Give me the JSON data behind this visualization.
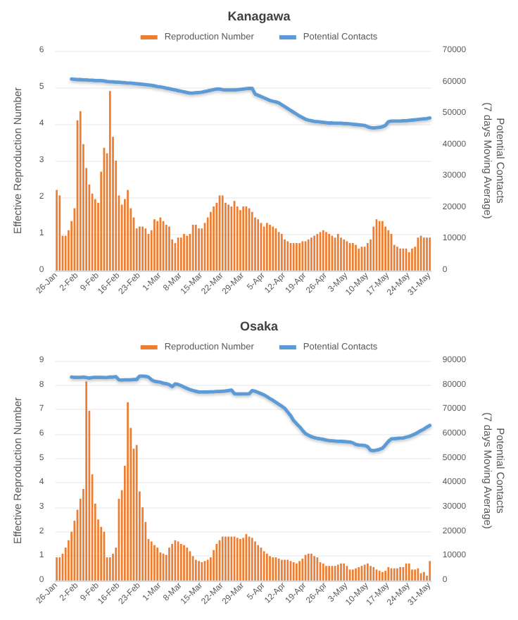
{
  "chart_data": [
    {
      "type": "bar",
      "title": "Kanagawa",
      "ylabel": "Effective Reproduction Number",
      "y2label": "Potential Contacts\n(7 days Moving Average)",
      "categories": [
        "26-Jan",
        null,
        null,
        null,
        null,
        null,
        null,
        "2-Feb",
        null,
        null,
        null,
        null,
        null,
        null,
        "9-Feb",
        null,
        null,
        null,
        null,
        null,
        null,
        "16-Feb",
        null,
        null,
        null,
        null,
        null,
        null,
        "23-Feb",
        null,
        null,
        null,
        null,
        null,
        null,
        "1-Mar",
        null,
        null,
        null,
        null,
        null,
        null,
        "8-Mar",
        null,
        null,
        null,
        null,
        null,
        null,
        "15-Mar",
        null,
        null,
        null,
        null,
        null,
        null,
        "22-Mar",
        null,
        null,
        null,
        null,
        null,
        null,
        "29-Mar",
        null,
        null,
        null,
        null,
        null,
        null,
        "5-Apr",
        null,
        null,
        null,
        null,
        null,
        null,
        "12-Apr",
        null,
        null,
        null,
        null,
        null,
        null,
        "19-Apr",
        null,
        null,
        null,
        null,
        null,
        null,
        "26-Apr",
        null,
        null,
        null,
        null,
        null,
        null,
        "3-May",
        null,
        null,
        null,
        null,
        null,
        null,
        "10-May",
        null,
        null,
        null,
        null,
        null,
        null,
        "17-May",
        null,
        null,
        null,
        null,
        null,
        null,
        "24-May",
        null,
        null,
        null,
        null,
        null,
        null,
        "31-May"
      ],
      "series": [
        {
          "name": "Reproduction Number",
          "color": "#ed7d31",
          "values": [
            2.2,
            2.05,
            0.95,
            0.95,
            1.1,
            1.35,
            1.7,
            4.1,
            4.35,
            3.45,
            2.8,
            2.35,
            2.1,
            1.95,
            1.85,
            2.7,
            3.35,
            3.2,
            4.9,
            3.65,
            3.0,
            2.05,
            1.8,
            1.95,
            2.2,
            1.7,
            1.45,
            1.15,
            1.2,
            1.2,
            1.15,
            1.0,
            1.1,
            1.4,
            1.35,
            1.45,
            1.35,
            1.25,
            1.2,
            0.85,
            0.75,
            0.9,
            0.9,
            1.0,
            0.95,
            1.0,
            1.25,
            1.25,
            1.15,
            1.15,
            1.3,
            1.45,
            1.6,
            1.75,
            1.85,
            2.05,
            2.05,
            1.85,
            1.8,
            1.75,
            1.9,
            1.75,
            1.65,
            1.75,
            1.75,
            1.7,
            1.6,
            1.45,
            1.4,
            1.3,
            1.2,
            1.3,
            1.25,
            1.2,
            1.15,
            1.05,
            1.0,
            0.85,
            0.8,
            0.75,
            0.75,
            0.75,
            0.75,
            0.8,
            0.8,
            0.85,
            0.9,
            0.95,
            1.0,
            1.05,
            1.1,
            1.05,
            1.0,
            0.95,
            0.9,
            1.0,
            0.9,
            0.85,
            0.8,
            0.75,
            0.75,
            0.7,
            0.6,
            0.65,
            0.65,
            0.75,
            0.85,
            1.2,
            1.4,
            1.35,
            1.35,
            1.2,
            1.1,
            1.0,
            0.7,
            0.65,
            0.6,
            0.6,
            0.6,
            0.5,
            0.6,
            0.65,
            0.9,
            0.95,
            0.9,
            0.9,
            0.9
          ]
        },
        {
          "name": "Potential Contacts",
          "type": "line",
          "axis": "y2",
          "color": "#5b9bd5",
          "values": [
            null,
            null,
            null,
            null,
            null,
            61000,
            60900,
            60800,
            60800,
            60700,
            60700,
            60600,
            60600,
            60500,
            60500,
            60500,
            60400,
            60200,
            60100,
            60100,
            60000,
            60000,
            59900,
            59800,
            59700,
            59700,
            59600,
            59500,
            59400,
            59300,
            59200,
            59100,
            59000,
            58800,
            58600,
            58500,
            58300,
            58100,
            57900,
            57700,
            57500,
            57300,
            57100,
            56900,
            56700,
            56500,
            56500,
            56600,
            56700,
            56800,
            57000,
            57200,
            57400,
            57600,
            57800,
            57800,
            57600,
            57500,
            57500,
            57500,
            57500,
            57600,
            57700,
            57800,
            57900,
            58000,
            58000,
            56200,
            55800,
            55400,
            55000,
            54600,
            54200,
            53900,
            53700,
            53400,
            52800,
            52200,
            51600,
            51000,
            50400,
            49800,
            49200,
            48700,
            48200,
            47900,
            47700,
            47500,
            47400,
            47300,
            47200,
            47100,
            47000,
            47000,
            46900,
            46900,
            46900,
            46800,
            46800,
            46700,
            46600,
            46500,
            46400,
            46300,
            46200,
            45800,
            45500,
            45400,
            45500,
            45600,
            45800,
            46200,
            47400,
            47600,
            47600,
            47600,
            47600,
            47700,
            47700,
            47800,
            47900,
            48000,
            48100,
            48200,
            48300,
            48400,
            48600
          ]
        }
      ],
      "ylim": [
        0,
        6
      ],
      "yticks": [
        0,
        1,
        2,
        3,
        4,
        5,
        6
      ],
      "y2lim": [
        0,
        70000
      ],
      "y2ticks": [
        0,
        10000,
        20000,
        30000,
        40000,
        50000,
        60000,
        70000
      ],
      "grid": "y",
      "legend": "top",
      "line_style": "solid"
    },
    {
      "type": "bar",
      "title": "Osaka",
      "ylabel": "Effective Reproduction Number",
      "y2label": "Potential Contacts\n(7 days Moving Average)",
      "categories": [
        "26-Jan",
        null,
        null,
        null,
        null,
        null,
        null,
        "2-Feb",
        null,
        null,
        null,
        null,
        null,
        null,
        "9-Feb",
        null,
        null,
        null,
        null,
        null,
        null,
        "16-Feb",
        null,
        null,
        null,
        null,
        null,
        null,
        "23-Feb",
        null,
        null,
        null,
        null,
        null,
        null,
        "1-Mar",
        null,
        null,
        null,
        null,
        null,
        null,
        "8-Mar",
        null,
        null,
        null,
        null,
        null,
        null,
        "15-Mar",
        null,
        null,
        null,
        null,
        null,
        null,
        "22-Mar",
        null,
        null,
        null,
        null,
        null,
        null,
        "29-Mar",
        null,
        null,
        null,
        null,
        null,
        null,
        "5-Apr",
        null,
        null,
        null,
        null,
        null,
        null,
        "12-Apr",
        null,
        null,
        null,
        null,
        null,
        null,
        "19-Apr",
        null,
        null,
        null,
        null,
        null,
        null,
        "26-Apr",
        null,
        null,
        null,
        null,
        null,
        null,
        "3-May",
        null,
        null,
        null,
        null,
        null,
        null,
        "10-May",
        null,
        null,
        null,
        null,
        null,
        null,
        "17-May",
        null,
        null,
        null,
        null,
        null,
        null,
        "24-May",
        null,
        null,
        null,
        null,
        null,
        null,
        "31-May"
      ],
      "series": [
        {
          "name": "Reproduction Number",
          "color": "#ed7d31",
          "values": [
            0.95,
            0.95,
            1.1,
            1.35,
            1.65,
            2.0,
            2.45,
            2.9,
            3.35,
            3.75,
            8.15,
            6.95,
            4.35,
            3.15,
            2.5,
            2.2,
            2.0,
            0.95,
            0.95,
            1.1,
            1.35,
            3.35,
            3.7,
            4.7,
            7.3,
            6.25,
            5.4,
            5.55,
            3.65,
            3.0,
            2.4,
            1.7,
            1.6,
            1.45,
            1.35,
            1.15,
            1.1,
            1.05,
            1.35,
            1.5,
            1.65,
            1.6,
            1.5,
            1.45,
            1.35,
            1.2,
            1.0,
            0.85,
            0.8,
            0.75,
            0.8,
            0.85,
            0.95,
            1.25,
            1.5,
            1.65,
            1.8,
            1.8,
            1.8,
            1.8,
            1.8,
            1.75,
            1.7,
            1.75,
            1.9,
            1.8,
            1.75,
            1.6,
            1.45,
            1.35,
            1.2,
            1.1,
            1.0,
            0.95,
            0.95,
            0.9,
            0.85,
            0.85,
            0.85,
            0.8,
            0.75,
            0.7,
            0.8,
            0.9,
            1.05,
            1.1,
            1.1,
            1.0,
            0.95,
            0.75,
            0.7,
            0.6,
            0.6,
            0.6,
            0.6,
            0.65,
            0.7,
            0.7,
            0.6,
            0.45,
            0.45,
            0.5,
            0.55,
            0.6,
            0.65,
            0.7,
            0.6,
            0.55,
            0.45,
            0.4,
            0.35,
            0.4,
            0.55,
            0.5,
            0.5,
            0.5,
            0.55,
            0.55,
            0.7,
            0.7,
            0.45,
            0.45,
            0.5,
            0.3,
            0.35,
            0.2,
            0.8
          ]
        },
        {
          "name": "Potential Contacts",
          "type": "line",
          "axis": "y2",
          "color": "#5b9bd5",
          "values": [
            null,
            null,
            null,
            null,
            null,
            83300,
            83200,
            83200,
            83200,
            83300,
            83100,
            82900,
            83100,
            83200,
            83200,
            83200,
            83100,
            83100,
            83300,
            83300,
            83500,
            82200,
            82100,
            82200,
            82200,
            82200,
            82300,
            82300,
            83700,
            83700,
            83600,
            83300,
            82200,
            81600,
            81400,
            81200,
            80800,
            80600,
            80200,
            79400,
            80500,
            80300,
            79800,
            79200,
            78700,
            78200,
            77800,
            77500,
            77200,
            77200,
            77200,
            77200,
            77300,
            77300,
            77400,
            77400,
            77500,
            77600,
            77800,
            78000,
            76500,
            76400,
            76400,
            76400,
            76400,
            76500,
            77800,
            77500,
            77000,
            76500,
            76000,
            75300,
            74500,
            73800,
            73000,
            72200,
            71400,
            70500,
            69000,
            67500,
            65500,
            64200,
            63000,
            61500,
            60200,
            59500,
            58900,
            58500,
            58200,
            58000,
            57800,
            57500,
            57300,
            57200,
            57100,
            57000,
            57000,
            56900,
            56800,
            56700,
            56400,
            55700,
            55500,
            55400,
            55300,
            54800,
            53300,
            53200,
            53400,
            53700,
            54200,
            55500,
            57000,
            58000,
            58100,
            58200,
            58300,
            58400,
            58700,
            59000,
            59500,
            60000,
            60700,
            61400,
            62000,
            62800,
            63500
          ]
        }
      ],
      "ylim": [
        0,
        9
      ],
      "yticks": [
        0,
        1,
        2,
        3,
        4,
        5,
        6,
        7,
        8,
        9
      ],
      "y2lim": [
        0,
        90000
      ],
      "y2ticks": [
        0,
        10000,
        20000,
        30000,
        40000,
        50000,
        60000,
        70000,
        80000,
        90000
      ],
      "grid": "y",
      "legend": "top",
      "line_style": "solid"
    }
  ]
}
